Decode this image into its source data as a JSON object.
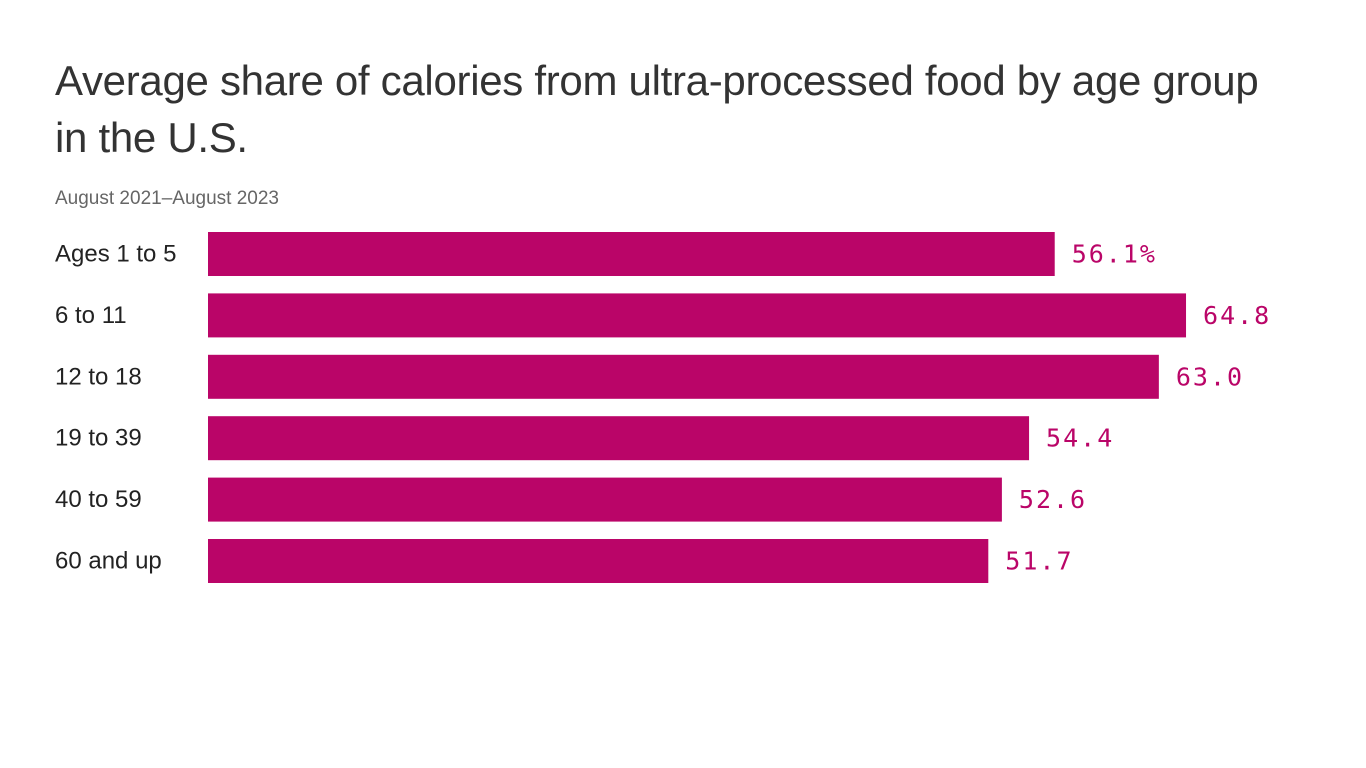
{
  "colors": {
    "bar": "#BA0568",
    "title": "#333333",
    "subtitle": "#666666",
    "category_text": "#222222"
  },
  "chart_data": {
    "type": "bar",
    "orientation": "horizontal",
    "title": "Average share of calories from ultra-processed food by age group in the U.S.",
    "subtitle": "August 2021–August 2023",
    "categories": [
      "Ages 1 to 5",
      "6 to 11",
      "12 to 18",
      "19 to 39",
      "40 to 59",
      "60 and up"
    ],
    "values": [
      56.1,
      64.8,
      63.0,
      54.4,
      52.6,
      51.7
    ],
    "value_labels": [
      "56.1%",
      "64.8",
      "63.0",
      "54.4",
      "52.6",
      "51.7"
    ],
    "unit": "%",
    "xlim": [
      0,
      65
    ],
    "grid": false,
    "legend": "none"
  }
}
